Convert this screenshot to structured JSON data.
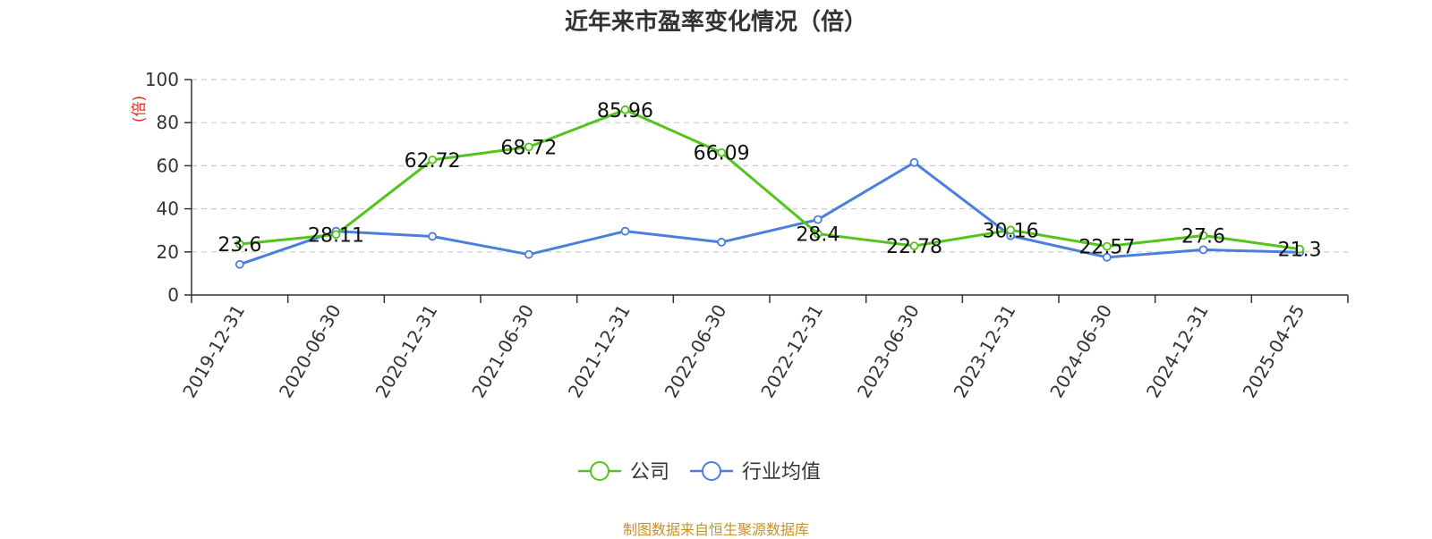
{
  "chart_data": {
    "type": "line",
    "title": "近年来市盈率变化情况（倍）",
    "ylabel": "(倍)",
    "xlabel": "",
    "ylim": [
      0,
      100
    ],
    "yticks": [
      0,
      20,
      40,
      60,
      80,
      100
    ],
    "grid": true,
    "legend_position": "bottom-center",
    "categories": [
      "2019-12-31",
      "2020-06-30",
      "2020-12-31",
      "2021-06-30",
      "2021-12-31",
      "2022-06-30",
      "2022-12-31",
      "2023-06-30",
      "2023-12-31",
      "2024-06-30",
      "2024-12-31",
      "2025-04-25"
    ],
    "series": [
      {
        "name": "公司",
        "color": "#52c41a",
        "values": [
          23.6,
          28.11,
          62.72,
          68.72,
          85.96,
          66.09,
          28.4,
          22.78,
          30.16,
          22.57,
          27.6,
          21.3
        ],
        "show_labels": true
      },
      {
        "name": "行业均值",
        "color": "#4a7fdc",
        "values": [
          14.2,
          29.6,
          27.2,
          18.8,
          29.6,
          24.5,
          35.0,
          61.5,
          27.5,
          17.5,
          21.0,
          19.8
        ],
        "show_labels": false
      }
    ]
  },
  "footer": {
    "source": "制图数据来自恒生聚源数据库"
  }
}
